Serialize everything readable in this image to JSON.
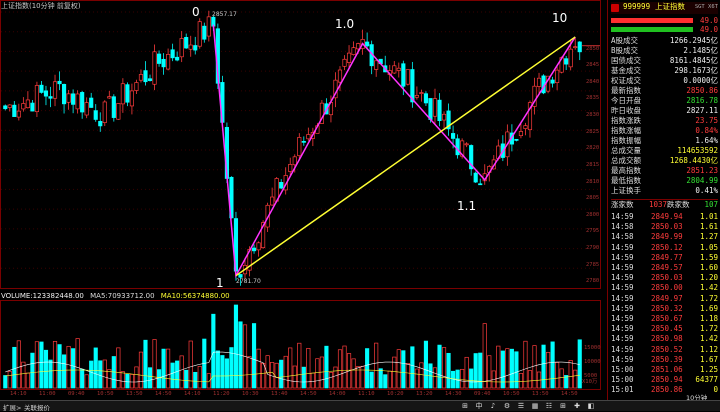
{
  "header": {
    "title": "上证指数(10分钟 前复权)"
  },
  "wave_labels": [
    {
      "id": "w0",
      "text": "0",
      "value": "2857.17"
    },
    {
      "id": "w1",
      "text": "1",
      "value": "2781.70"
    },
    {
      "id": "w10a",
      "text": "1.0",
      "value": ""
    },
    {
      "id": "w11",
      "text": "1.1",
      "value": ""
    },
    {
      "id": "w10",
      "text": "10",
      "value": ""
    }
  ],
  "volume_header": {
    "volume": "VOLUME:123382448.00",
    "ma5": "MA5:70933712.00",
    "ma10": "MA10:56374880.00"
  },
  "price_ticks": [
    "2850",
    "2845",
    "2840",
    "2835",
    "2830",
    "2825",
    "2820",
    "2815",
    "2810",
    "2805",
    "2800",
    "2795",
    "2790",
    "2785",
    "2780"
  ],
  "volume_ticks": [
    "15000",
    "10000",
    "5000"
  ],
  "volume_unit": "X10万",
  "time_ticks": [
    "14:10",
    "11:00",
    "09:40",
    "10:50",
    "13:50",
    "14:50",
    "14:10",
    "11:20",
    "10:30",
    "13:40",
    "14:50",
    "14:00",
    "11:10",
    "10:20",
    "13:20",
    "14:30",
    "09:40",
    "10:50",
    "13:50",
    "14:50"
  ],
  "side": {
    "code": "999999",
    "name": "上证指数",
    "tag": "SGT X6T",
    "bar1_value": "49.0",
    "bar2_value": "49.0",
    "stats": [
      {
        "label": "A股成交",
        "value": "1266.2945亿",
        "color": "wht"
      },
      {
        "label": "B股成交",
        "value": "2.1485亿",
        "color": "wht"
      },
      {
        "label": "国债成交",
        "value": "8161.4845亿",
        "color": "wht"
      },
      {
        "label": "基金成交",
        "value": "298.1673亿",
        "color": "wht"
      },
      {
        "label": "权证成交",
        "value": "0.0000亿",
        "color": "wht"
      },
      {
        "label": "最新指数",
        "value": "2850.86",
        "color": "red"
      },
      {
        "label": "今日开盘",
        "value": "2816.78",
        "color": "grn"
      },
      {
        "label": "昨日收盘",
        "value": "2827.11",
        "color": "wht"
      },
      {
        "label": "指数涨跌",
        "value": "23.75",
        "color": "red"
      },
      {
        "label": "指数涨幅",
        "value": "0.84%",
        "color": "red"
      },
      {
        "label": "指数振幅",
        "value": "1.64%",
        "color": "wht"
      },
      {
        "label": "总成交量",
        "value": "114653592",
        "color": "ylw"
      },
      {
        "label": "总成交额",
        "value": "1268.4430亿",
        "color": "ylw"
      },
      {
        "label": "最高指数",
        "value": "2851.23",
        "color": "red"
      },
      {
        "label": "最低指数",
        "value": "2804.99",
        "color": "grn"
      },
      {
        "label": "上证换手",
        "value": "0.41%",
        "color": "wht"
      }
    ],
    "updown": {
      "up_label": "涨家数",
      "up_value": "1037",
      "down_label": "跌家数",
      "down_value": "107"
    },
    "ticks": [
      {
        "time": "14:59",
        "price": "2849.94",
        "vol": "1.01"
      },
      {
        "time": "14:58",
        "price": "2850.03",
        "vol": "1.61"
      },
      {
        "time": "14:58",
        "price": "2849.99",
        "vol": "1.27"
      },
      {
        "time": "14:59",
        "price": "2850.12",
        "vol": "1.05"
      },
      {
        "time": "14:59",
        "price": "2849.77",
        "vol": "1.59"
      },
      {
        "time": "14:59",
        "price": "2849.57",
        "vol": "1.60"
      },
      {
        "time": "14:59",
        "price": "2850.03",
        "vol": "1.20"
      },
      {
        "time": "14:59",
        "price": "2850.00",
        "vol": "1.42"
      },
      {
        "time": "14:59",
        "price": "2849.97",
        "vol": "1.72"
      },
      {
        "time": "14:59",
        "price": "2850.32",
        "vol": "1.69"
      },
      {
        "time": "14:59",
        "price": "2850.67",
        "vol": "1.18"
      },
      {
        "time": "14:59",
        "price": "2850.45",
        "vol": "1.72"
      },
      {
        "time": "14:59",
        "price": "2850.98",
        "vol": "1.42"
      },
      {
        "time": "14:59",
        "price": "2850.52",
        "vol": "1.12"
      },
      {
        "time": "14:59",
        "price": "2850.39",
        "vol": "1.67"
      },
      {
        "time": "15:00",
        "price": "2851.06",
        "vol": "1.25"
      },
      {
        "time": "15:00",
        "price": "2850.94",
        "vol": "64377"
      },
      {
        "time": "15:01",
        "price": "2850.86",
        "vol": "0"
      }
    ],
    "period": "10分钟"
  },
  "bottom": {
    "tabs": [
      "扩展>",
      "关联报价"
    ],
    "icons": [
      "⊞",
      "中",
      "♪",
      "⚙",
      "☰",
      "▦",
      "☷",
      "⊞",
      "✚",
      "◧"
    ]
  },
  "chart_data": {
    "type": "candlestick",
    "x_unit": "10-minute bars",
    "price_range": [
      2778,
      2861
    ],
    "wave_points": [
      {
        "label": "0",
        "bar": 46,
        "price": 2857.17
      },
      {
        "label": "1",
        "bar": 51,
        "price": 2781.7
      },
      {
        "label": "1.0",
        "bar": 79,
        "price": 2851.5
      },
      {
        "label": "1.1",
        "bar": 106,
        "price": 2810.5
      },
      {
        "label": "10",
        "bar": 126,
        "price": 2853.5
      }
    ],
    "last_price": 2850.86
  }
}
